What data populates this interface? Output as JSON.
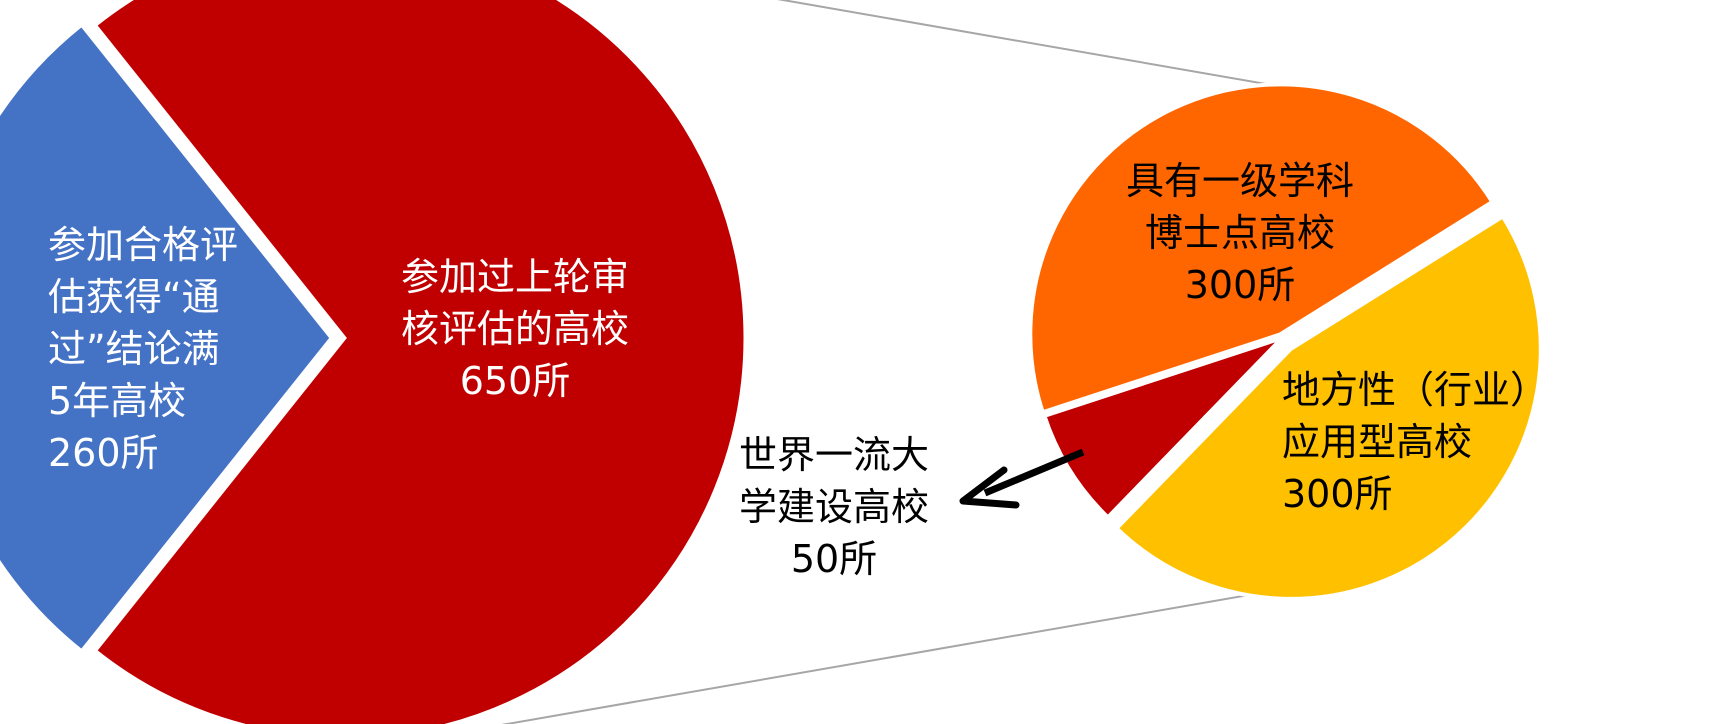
{
  "chart_data": {
    "type": "pie",
    "variant": "pie-of-pie",
    "main_pie": {
      "slices": [
        {
          "label_lines": [
            "参加合格评",
            "估获得“通",
            "过”结论满",
            "5年高校",
            "260所"
          ],
          "value": 260,
          "color": "#4472C4",
          "label_color": "#FFFFFF",
          "label_align": "start"
        },
        {
          "label_lines": [
            "参加过上轮审",
            "核评估的高校",
            "650所"
          ],
          "value": 650,
          "color": "#C00000",
          "label_color": "#FFFFFF",
          "label_align": "middle"
        }
      ]
    },
    "secondary_pie": {
      "breakdown_of": "参加过上轮审核评估的高校",
      "slices": [
        {
          "label_lines": [
            "具有一级学科",
            "博士点高校",
            "300所"
          ],
          "value": 300,
          "color": "#FF6600",
          "label_color": "#000000",
          "label_align": "middle"
        },
        {
          "label_lines": [
            "地方性（行业）",
            "应用型高校",
            "300所"
          ],
          "value": 300,
          "color": "#FFC000",
          "label_color": "#000000",
          "label_align": "start"
        },
        {
          "label_lines": [
            "世界一流大",
            "学建设高校",
            "50所"
          ],
          "value": 50,
          "color": "#C00000",
          "label_color": "#000000",
          "label_align": "middle"
        }
      ]
    },
    "connector_color": "#A6A6A6",
    "arrow_color": "#000000",
    "legend": "none"
  }
}
